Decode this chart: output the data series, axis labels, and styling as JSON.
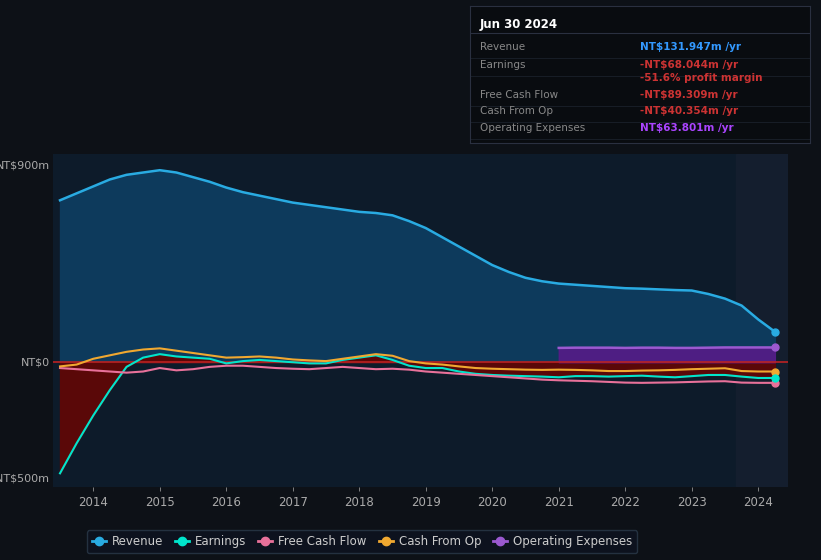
{
  "bg_color": "#0d1117",
  "plot_bg_color": "#0d1b2a",
  "ylabel_top": "NT$900m",
  "ylabel_bot": "-NT$500m",
  "zero_label": "NT$0",
  "info_box_title": "Jun 30 2024",
  "info_rows": [
    {
      "label": "Revenue",
      "value": "NT$131.947m /yr",
      "value_color": "#3399ff"
    },
    {
      "label": "Earnings",
      "value": "-NT$68.044m /yr",
      "value_color": "#cc3333"
    },
    {
      "label": "",
      "value": "-51.6% profit margin",
      "value_color": "#cc3333"
    },
    {
      "label": "Free Cash Flow",
      "value": "-NT$89.309m /yr",
      "value_color": "#cc3333"
    },
    {
      "label": "Cash From Op",
      "value": "-NT$40.354m /yr",
      "value_color": "#cc3333"
    },
    {
      "label": "Operating Expenses",
      "value": "NT$63.801m /yr",
      "value_color": "#aa44ff"
    }
  ],
  "years": [
    2013.5,
    2013.75,
    2014.0,
    2014.25,
    2014.5,
    2014.75,
    2015.0,
    2015.25,
    2015.5,
    2015.75,
    2016.0,
    2016.25,
    2016.5,
    2016.75,
    2017.0,
    2017.25,
    2017.5,
    2017.75,
    2018.0,
    2018.25,
    2018.5,
    2018.75,
    2019.0,
    2019.25,
    2019.5,
    2019.75,
    2020.0,
    2020.25,
    2020.5,
    2020.75,
    2021.0,
    2021.25,
    2021.5,
    2021.75,
    2022.0,
    2022.25,
    2022.5,
    2022.75,
    2023.0,
    2023.25,
    2023.5,
    2023.75,
    2024.0,
    2024.25
  ],
  "revenue": [
    700,
    730,
    760,
    790,
    810,
    820,
    830,
    820,
    800,
    780,
    755,
    735,
    720,
    705,
    690,
    680,
    670,
    660,
    650,
    645,
    635,
    610,
    580,
    540,
    500,
    460,
    420,
    390,
    365,
    350,
    340,
    335,
    330,
    325,
    320,
    318,
    315,
    312,
    310,
    295,
    275,
    245,
    185,
    132
  ],
  "earnings": [
    -480,
    -350,
    -230,
    -120,
    -20,
    20,
    35,
    25,
    20,
    15,
    -5,
    5,
    10,
    5,
    0,
    -5,
    -5,
    10,
    20,
    30,
    10,
    -15,
    -25,
    -25,
    -40,
    -50,
    -55,
    -58,
    -60,
    -62,
    -65,
    -60,
    -60,
    -62,
    -60,
    -58,
    -62,
    -65,
    -60,
    -55,
    -55,
    -62,
    -68,
    -68
  ],
  "free_cash_flow": [
    -25,
    -30,
    -35,
    -40,
    -45,
    -40,
    -25,
    -35,
    -30,
    -20,
    -15,
    -15,
    -20,
    -25,
    -28,
    -30,
    -25,
    -20,
    -25,
    -30,
    -28,
    -32,
    -40,
    -45,
    -50,
    -55,
    -60,
    -65,
    -70,
    -75,
    -78,
    -80,
    -82,
    -85,
    -88,
    -89,
    -88,
    -87,
    -85,
    -83,
    -82,
    -88,
    -89,
    -89
  ],
  "cash_from_op": [
    -18,
    -10,
    15,
    30,
    45,
    55,
    60,
    50,
    40,
    30,
    20,
    22,
    25,
    20,
    12,
    8,
    5,
    15,
    25,
    35,
    28,
    5,
    -5,
    -10,
    -18,
    -25,
    -28,
    -30,
    -32,
    -33,
    -32,
    -33,
    -35,
    -38,
    -38,
    -36,
    -35,
    -33,
    -30,
    -28,
    -26,
    -38,
    -40,
    -40
  ],
  "op_exp": [
    null,
    null,
    null,
    null,
    null,
    null,
    null,
    null,
    null,
    null,
    null,
    null,
    null,
    null,
    null,
    null,
    null,
    null,
    null,
    null,
    null,
    null,
    null,
    null,
    null,
    null,
    null,
    null,
    null,
    null,
    62,
    63,
    63,
    63,
    62,
    63,
    63,
    62,
    62,
    63,
    64,
    64,
    64,
    64
  ],
  "x_ticks": [
    2014,
    2015,
    2016,
    2017,
    2018,
    2019,
    2020,
    2021,
    2022,
    2023,
    2024
  ],
  "ylim": [
    -540,
    900
  ],
  "xlim": [
    2013.4,
    2024.45
  ],
  "highlight_start": 2023.67,
  "revenue_color": "#29abe2",
  "earnings_color": "#00e5cc",
  "fcf_color": "#e8719a",
  "cfop_color": "#f0a830",
  "opex_color": "#9b59d0",
  "rev_fill_color": "#0d3a5c",
  "earn_fill_color": "#5a0808",
  "opex_fill_color": "#5a1a8a",
  "zero_line_color": "#bb2222",
  "grid_color": "#1a2a3a",
  "highlight_color": "#141e2e",
  "legend_bg": "#0d1320",
  "legend_edge": "#2a3a4a",
  "label_color": "#aaaaaa",
  "legend_items": [
    {
      "label": "Revenue",
      "color": "#29abe2"
    },
    {
      "label": "Earnings",
      "color": "#00e5cc"
    },
    {
      "label": "Free Cash Flow",
      "color": "#e8719a"
    },
    {
      "label": "Cash From Op",
      "color": "#f0a830"
    },
    {
      "label": "Operating Expenses",
      "color": "#9b59d0"
    }
  ]
}
